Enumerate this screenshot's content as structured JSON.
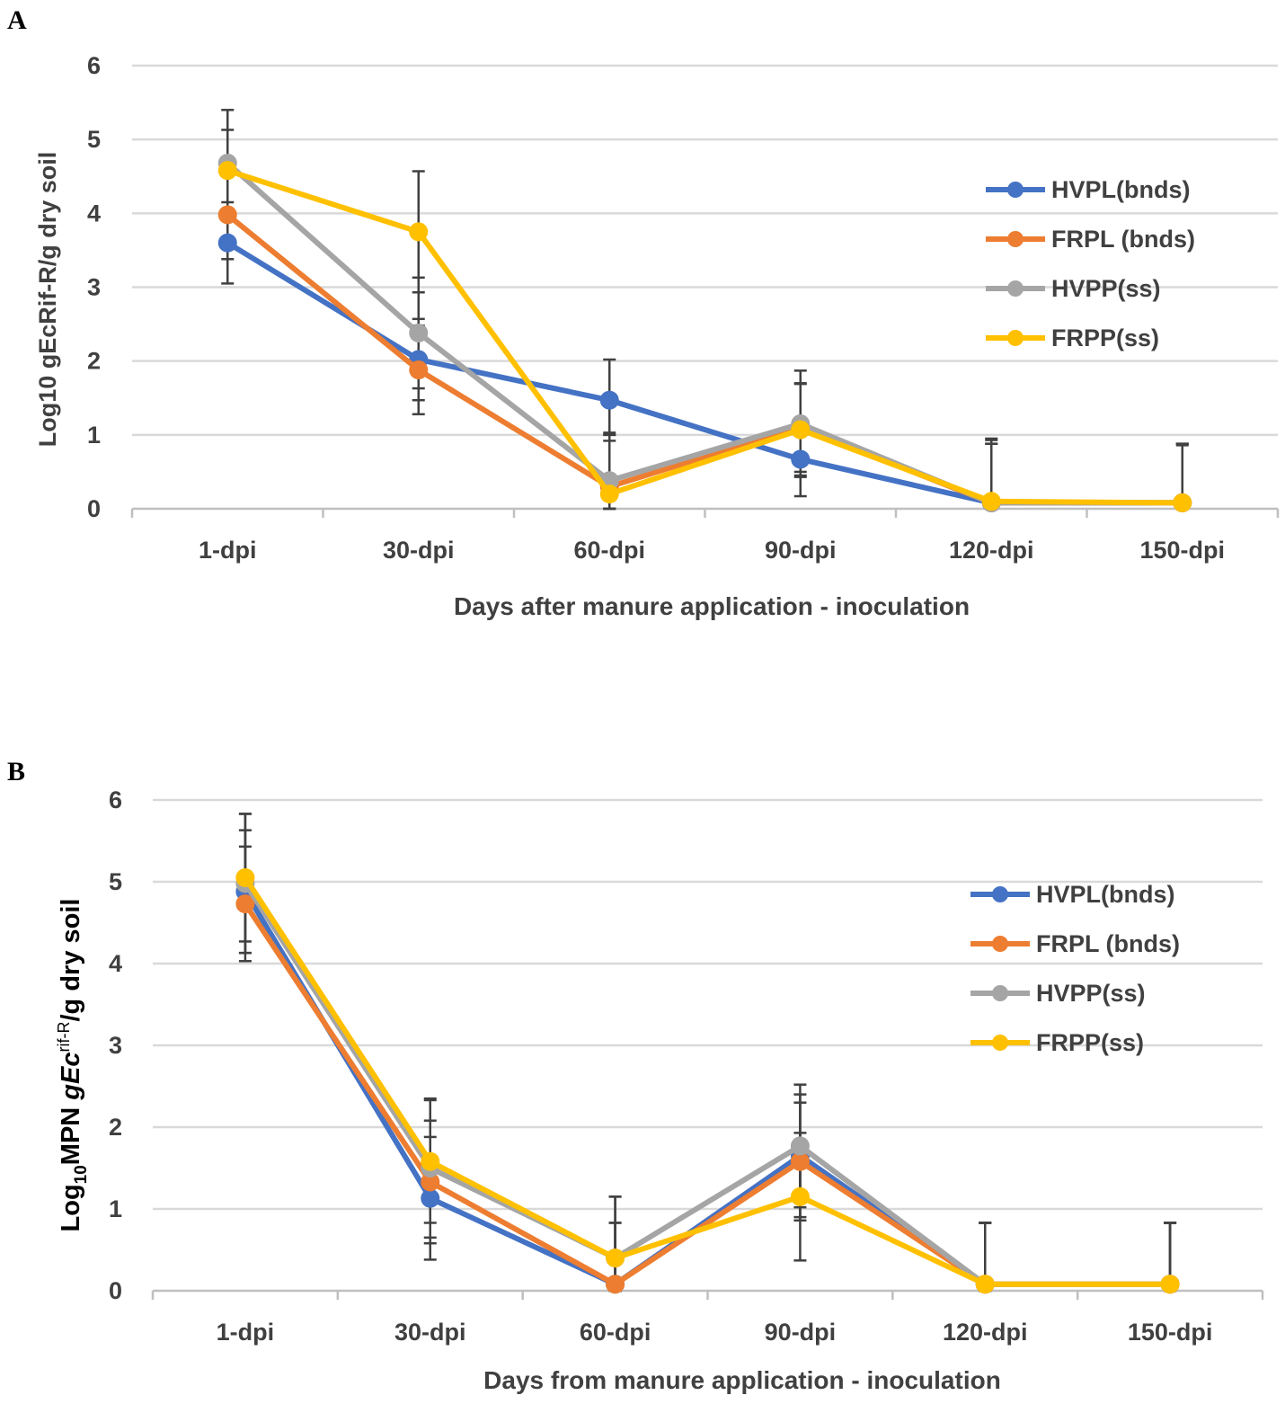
{
  "chart_data": [
    {
      "panel_label": "A",
      "type": "line",
      "xlabel": "Days after manure application - inoculation",
      "ylabel": "Log10 gEcRif-R/g dry soil",
      "ylim": [
        0,
        6
      ],
      "yticks": [
        "0",
        "1",
        "2",
        "3",
        "4",
        "5",
        "6"
      ],
      "categories": [
        "1-dpi",
        "30-dpi",
        "60-dpi",
        "90-dpi",
        "120-dpi",
        "150-dpi"
      ],
      "grid": "horizontal",
      "legend_position": "right",
      "series": [
        {
          "name": "HVPL(bnds)",
          "color": "#4472C4",
          "values": [
            3.6,
            2.02,
            1.47,
            0.67,
            0.08,
            0.08
          ],
          "errors": [
            0.55,
            0.55,
            0.55,
            0.5,
            0.8,
            0.8
          ]
        },
        {
          "name": "FRPL (bnds)",
          "color": "#ED7D31",
          "values": [
            3.98,
            1.88,
            0.3,
            1.1,
            0.08,
            0.08
          ],
          "errors": [
            0.6,
            0.6,
            0.7,
            0.6,
            0.85,
            0.8
          ]
        },
        {
          "name": "HVPP(ss)",
          "color": "#A5A5A5",
          "values": [
            4.68,
            2.38,
            0.38,
            1.15,
            0.08,
            0.08
          ],
          "errors": [
            0.72,
            0.75,
            0.65,
            0.72,
            0.8,
            0.78
          ]
        },
        {
          "name": "FRPP(ss)",
          "color": "#FFC000",
          "values": [
            4.58,
            3.75,
            0.2,
            1.07,
            0.1,
            0.08
          ],
          "errors": [
            0.55,
            0.82,
            0.8,
            0.62,
            0.85,
            0.8
          ]
        }
      ]
    },
    {
      "panel_label": "B",
      "type": "line",
      "xlabel": "Days from manure application - inoculation",
      "ylabel_parts": {
        "prefix": "Log",
        "sub": "10",
        "mpn": "MPN ",
        "italic": "gEc",
        "sup": "rif-R",
        "suffix": "/g dry soil"
      },
      "ylim": [
        0,
        6
      ],
      "yticks": [
        "0",
        "1",
        "2",
        "3",
        "4",
        "5",
        "6"
      ],
      "categories": [
        "1-dpi",
        "30-dpi",
        "60-dpi",
        "90-dpi",
        "120-dpi",
        "150-dpi"
      ],
      "grid": "horizontal",
      "legend_position": "right",
      "series": [
        {
          "name": "HVPL(bnds)",
          "color": "#4472C4",
          "values": [
            4.88,
            1.13,
            0.08,
            1.65,
            0.08,
            0.08
          ],
          "errors": [
            0.75,
            0.75,
            0.75,
            0.75,
            0.75,
            0.75
          ]
        },
        {
          "name": "FRPL (bnds)",
          "color": "#ED7D31",
          "values": [
            4.73,
            1.33,
            0.08,
            1.58,
            0.08,
            0.08
          ],
          "errors": [
            0.7,
            0.75,
            0.75,
            0.72,
            0.75,
            0.75
          ]
        },
        {
          "name": "HVPP(ss)",
          "color": "#A5A5A5",
          "values": [
            4.98,
            1.5,
            0.4,
            1.77,
            0.08,
            0.08
          ],
          "errors": [
            0.85,
            0.85,
            0.75,
            0.75,
            0.75,
            0.75
          ]
        },
        {
          "name": "FRPP(ss)",
          "color": "#FFC000",
          "values": [
            5.05,
            1.58,
            0.4,
            1.15,
            0.08,
            0.08
          ],
          "errors": [
            0.78,
            0.75,
            0.75,
            0.78,
            0.75,
            0.75
          ]
        }
      ]
    }
  ]
}
